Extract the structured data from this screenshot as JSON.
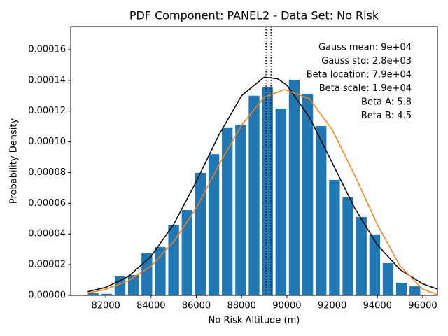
{
  "chart_data": {
    "type": "histogram",
    "title": "PDF Component: PANEL2 - Data Set: No Risk",
    "xlabel": "No Risk Altitude (m)",
    "ylabel": "Probability Density",
    "bins": [
      81150,
      81742,
      82334,
      82926,
      83518,
      84110,
      84702,
      85294,
      85886,
      86478,
      87070,
      87662,
      88254,
      88846,
      89438,
      90030,
      90622,
      91214,
      91806,
      92398,
      92990,
      93582,
      94174,
      94766,
      95358,
      95950
    ],
    "values": [
      1.4e-06,
      1e-06,
      1.23e-05,
      1.32e-05,
      2.74e-05,
      3.15e-05,
      4.6e-05,
      5.56e-05,
      7.98e-05,
      9.2e-05,
      0.000109,
      0.000111,
      0.00013,
      0.0001354,
      0.0001217,
      0.0001404,
      0.0001313,
      0.0001103,
      7.52e-05,
      6.38e-05,
      5.11e-05,
      3.97e-05,
      2.1e-05,
      8.2e-06,
      5.9e-06
    ],
    "color": "#1f77b4",
    "lines": [
      {
        "color": "#000000",
        "x": [
          81200,
          82000,
          83000,
          84000,
          85000,
          86000,
          87000,
          88000,
          89000,
          89600,
          90000,
          91000,
          92000,
          93000,
          94000,
          95000,
          96000,
          96650
        ],
        "values": [
          2.4e-06,
          5.2e-06,
          1.23e-05,
          2.54e-05,
          4.63e-05,
          7.42e-05,
          0.0001046,
          0.00013,
          0.0001421,
          0.000141,
          0.0001368,
          0.0001159,
          8.64e-05,
          5.67e-05,
          3.28e-05,
          1.67e-05,
          7.5e-06,
          4.1e-06
        ]
      },
      {
        "color": "#ff7f0e",
        "x": [
          81200,
          82000,
          83000,
          84000,
          85000,
          86000,
          87000,
          88000,
          89000,
          89900,
          91000,
          92000,
          93000,
          94000,
          95000,
          96000,
          96650
        ],
        "values": [
          1.5e-06,
          4e-06,
          9.5e-06,
          1.9e-05,
          3.5e-05,
          5.7e-05,
          8.5e-05,
          0.000111,
          0.000129,
          0.000134,
          0.000128,
          0.000108,
          7.8e-05,
          4.6e-05,
          1.9e-05,
          4e-06,
          5e-07
        ]
      }
    ],
    "vlines": [
      89080,
      89300
    ],
    "annotations": [
      "Gauss mean: 9e+04",
      "Gauss std: 2.8e+03",
      "Beta location: 7.9e+04",
      "Beta scale: 1.9e+04",
      "Beta A: 5.8",
      "Beta B: 4.5"
    ],
    "xlim": [
      80450,
      96650
    ],
    "ylim": [
      0,
      0.000175
    ],
    "xticks": [
      82000,
      84000,
      86000,
      88000,
      90000,
      92000,
      94000,
      96000
    ],
    "yticks": [
      {
        "value": 0,
        "label": "0.00000"
      },
      {
        "value": 2e-05,
        "label": "0.00002"
      },
      {
        "value": 4e-05,
        "label": "0.00004"
      },
      {
        "value": 6e-05,
        "label": "0.00006"
      },
      {
        "value": 8e-05,
        "label": "0.00008"
      },
      {
        "value": 0.0001,
        "label": "0.00010"
      },
      {
        "value": 0.00012,
        "label": "0.00012"
      },
      {
        "value": 0.00014,
        "label": "0.00014"
      },
      {
        "value": 0.00016,
        "label": "0.00016"
      }
    ]
  }
}
